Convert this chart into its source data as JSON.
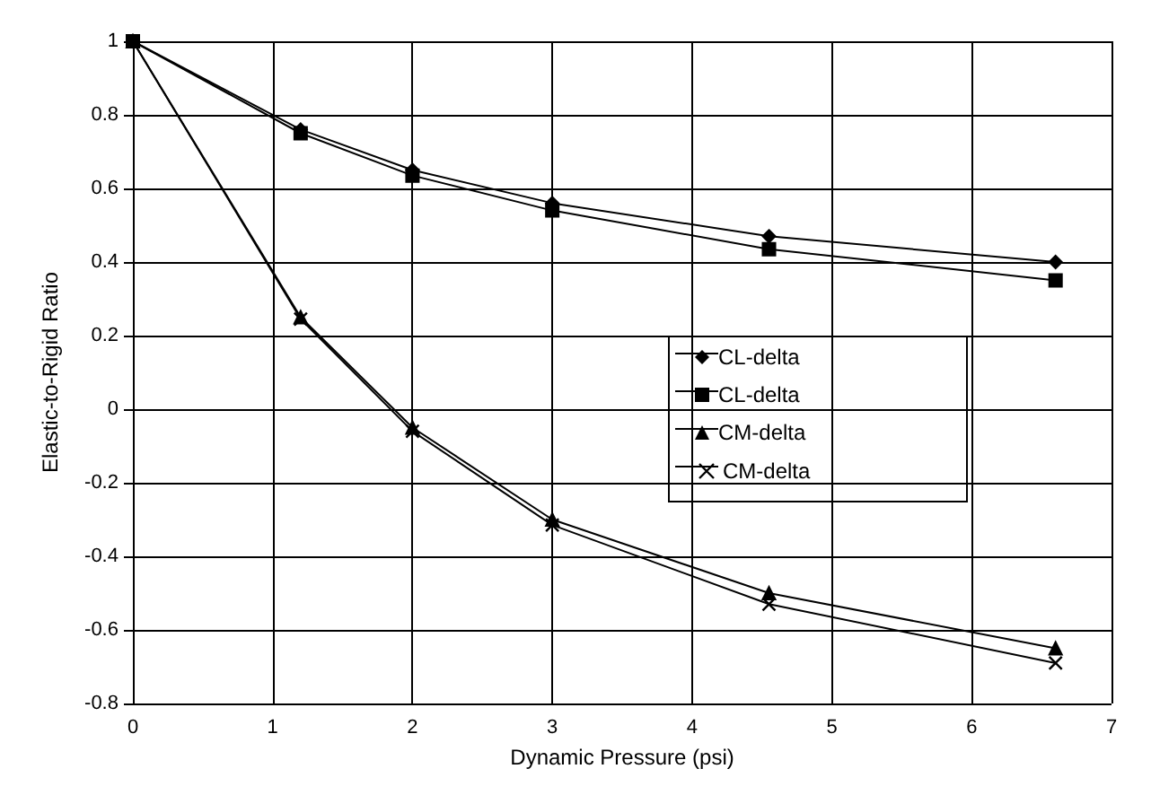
{
  "chart_data": {
    "type": "line",
    "xlabel": "Dynamic Pressure (psi)",
    "ylabel": "Elastic-to-Rigid Ratio",
    "x": [
      0,
      1.2,
      2,
      3,
      4.55,
      6.6
    ],
    "series": [
      {
        "name": "CL-delta",
        "color": "#000000",
        "marker": "diamond",
        "values": [
          1,
          0.76,
          0.65,
          0.56,
          0.47,
          0.4
        ]
      },
      {
        "name": "CL-delta",
        "color": "#000000",
        "marker": "square",
        "values": [
          1,
          0.75,
          0.635,
          0.54,
          0.435,
          0.35
        ]
      },
      {
        "name": "CM-delta",
        "color": "#000000",
        "marker": "triangle",
        "values": [
          1,
          0.25,
          -0.05,
          -0.3,
          -0.5,
          -0.65
        ]
      },
      {
        "name": "CM-delta",
        "color": "#000000",
        "marker": "cross",
        "values": [
          1,
          0.245,
          -0.06,
          -0.315,
          -0.53,
          -0.69
        ]
      }
    ],
    "xlim": [
      0,
      7
    ],
    "xticks": [
      0,
      1,
      2,
      3,
      4,
      5,
      6,
      7
    ],
    "ylim": [
      -0.8,
      1
    ],
    "yticks": [
      -0.8,
      -0.6,
      -0.4,
      -0.2,
      0,
      0.2,
      0.4,
      0.6,
      0.8,
      1
    ],
    "grid": true,
    "legend": "right",
    "line_style": "solid"
  }
}
